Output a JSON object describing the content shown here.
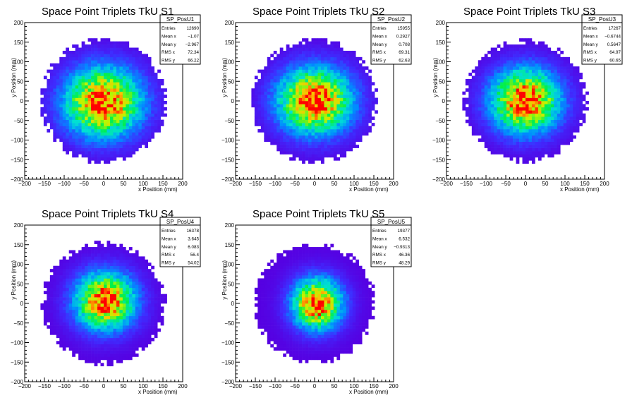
{
  "chart_data": [
    {
      "type": "heatmap",
      "title": "Space Point Triplets TkU S1",
      "xlabel": "x Position (mm)",
      "ylabel": "y Position (mm)",
      "xlim": [
        -200,
        200
      ],
      "ylim": [
        -200,
        200
      ],
      "xticks": [
        "−200",
        "−150",
        "−100",
        "−50",
        "0",
        "50",
        "100",
        "150",
        "200"
      ],
      "yticks": [
        "−200",
        "−150",
        "−100",
        "−50",
        "0",
        "50",
        "100",
        "150",
        "200"
      ],
      "stats": {
        "name": "SP_PosU1",
        "rows": [
          {
            "label": "Entries",
            "value": "12690"
          },
          {
            "label": "Mean x",
            "value": "−1.07"
          },
          {
            "label": "Mean y",
            "value": "−2.967"
          },
          {
            "label": "RMS x",
            "value": "72.34"
          },
          {
            "label": "RMS y",
            "value": "66.22"
          }
        ]
      },
      "mean_x": -1.07,
      "mean_y": -2.967,
      "rms_x": 72.34,
      "rms_y": 66.22,
      "radius": 162
    },
    {
      "type": "heatmap",
      "title": "Space Point Triplets TkU S2",
      "xlabel": "x Position (mm)",
      "ylabel": "y Position (mm)",
      "xlim": [
        -200,
        200
      ],
      "ylim": [
        -200,
        200
      ],
      "xticks": [
        "−200",
        "−150",
        "−100",
        "−50",
        "0",
        "50",
        "100",
        "150",
        "200"
      ],
      "yticks": [
        "−200",
        "−150",
        "−100",
        "−50",
        "0",
        "50",
        "100",
        "150",
        "200"
      ],
      "stats": {
        "name": "SP_PosU2",
        "rows": [
          {
            "label": "Entries",
            "value": "15955"
          },
          {
            "label": "Mean x",
            "value": "0.2927"
          },
          {
            "label": "Mean y",
            "value": "0.708"
          },
          {
            "label": "RMS x",
            "value": "69.31"
          },
          {
            "label": "RMS y",
            "value": "62.63"
          }
        ]
      },
      "mean_x": 0.2927,
      "mean_y": 0.708,
      "rms_x": 69.31,
      "rms_y": 62.63,
      "radius": 160
    },
    {
      "type": "heatmap",
      "title": "Space Point Triplets TkU S3",
      "xlabel": "x Position (mm)",
      "ylabel": "y Position (mm)",
      "xlim": [
        -200,
        200
      ],
      "ylim": [
        -200,
        200
      ],
      "xticks": [
        "−200",
        "−150",
        "−100",
        "−50",
        "0",
        "50",
        "100",
        "150",
        "200"
      ],
      "yticks": [
        "−200",
        "−150",
        "−100",
        "−50",
        "0",
        "50",
        "100",
        "150",
        "200"
      ],
      "stats": {
        "name": "SP_PosU3",
        "rows": [
          {
            "label": "Entries",
            "value": "17267"
          },
          {
            "label": "Mean x",
            "value": "−0.6744"
          },
          {
            "label": "Mean y",
            "value": "0.5647"
          },
          {
            "label": "RMS x",
            "value": "64.97"
          },
          {
            "label": "RMS y",
            "value": "60.65"
          }
        ]
      },
      "mean_x": -0.6744,
      "mean_y": 0.5647,
      "rms_x": 64.97,
      "rms_y": 60.65,
      "radius": 158
    },
    {
      "type": "heatmap",
      "title": "Space Point Triplets TkU S4",
      "xlabel": "x Position (mm)",
      "ylabel": "y Position (mm)",
      "xlim": [
        -200,
        200
      ],
      "ylim": [
        -200,
        200
      ],
      "xticks": [
        "−200",
        "−150",
        "−100",
        "−50",
        "0",
        "50",
        "100",
        "150",
        "200"
      ],
      "yticks": [
        "−200",
        "−150",
        "−100",
        "−50",
        "0",
        "50",
        "100",
        "150",
        "200"
      ],
      "stats": {
        "name": "SP_PosU4",
        "rows": [
          {
            "label": "Entries",
            "value": "16378"
          },
          {
            "label": "Mean x",
            "value": "3.645"
          },
          {
            "label": "Mean y",
            "value": "6.083"
          },
          {
            "label": "RMS x",
            "value": "56.4"
          },
          {
            "label": "RMS y",
            "value": "54.02"
          }
        ]
      },
      "mean_x": 3.645,
      "mean_y": 6.083,
      "rms_x": 56.4,
      "rms_y": 54.02,
      "radius": 158
    },
    {
      "type": "heatmap",
      "title": "Space Point Triplets TkU S5",
      "xlabel": "x Position (mm)",
      "ylabel": "y Position (mm)",
      "xlim": [
        -200,
        200
      ],
      "ylim": [
        -200,
        200
      ],
      "xticks": [
        "−200",
        "−150",
        "−100",
        "−50",
        "0",
        "50",
        "100",
        "150",
        "200"
      ],
      "yticks": [
        "−200",
        "−150",
        "−100",
        "−50",
        "0",
        "50",
        "100",
        "150",
        "200"
      ],
      "stats": {
        "name": "SP_PosU5",
        "rows": [
          {
            "label": "Entries",
            "value": "19377"
          },
          {
            "label": "Mean x",
            "value": "6.532"
          },
          {
            "label": "Mean y",
            "value": "−0.9313"
          },
          {
            "label": "RMS x",
            "value": "46.36"
          },
          {
            "label": "RMS y",
            "value": "48.29"
          }
        ]
      },
      "mean_x": 6.532,
      "mean_y": -0.9313,
      "rms_x": 46.36,
      "rms_y": 48.29,
      "radius": 155
    }
  ]
}
